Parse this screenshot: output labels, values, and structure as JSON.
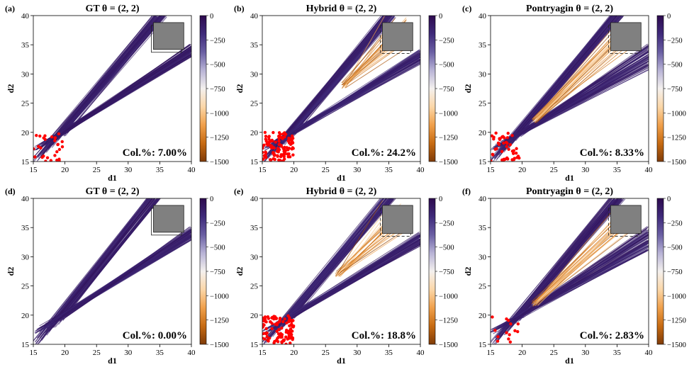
{
  "colors": {
    "colormap": [
      "#2d0a4e",
      "#3f2a7a",
      "#6a5fa3",
      "#b8b3d6",
      "#f4f1ee",
      "#fbd7a8",
      "#f0a04b",
      "#c76b12",
      "#7f3b08"
    ],
    "collision_dot": "#ff0000",
    "obstacle_fill": "#808080"
  },
  "chart_data": [
    {
      "type": "line",
      "panel_label": "(a)",
      "title": "GT θ = (2, 2)",
      "xlabel": "d1",
      "ylabel": "d2",
      "xlim": [
        15,
        40
      ],
      "ylim": [
        15,
        40
      ],
      "xticks": [
        "15",
        "20",
        "25",
        "30",
        "35",
        "40"
      ],
      "yticks": [
        "15",
        "20",
        "25",
        "30",
        "35",
        "40"
      ],
      "colorbar": {
        "ticks": [
          "0",
          "−250",
          "−500",
          "−750",
          "−1000",
          "−1250",
          "−1500"
        ],
        "range": [
          -1500,
          0
        ]
      },
      "obstacle": {
        "x": [
          34,
          38.8
        ],
        "y": [
          34.2,
          38.8
        ]
      },
      "start_region": {
        "x": [
          15,
          20
        ],
        "y": [
          15,
          20
        ]
      },
      "trajectory_bands": [
        {
          "start": [
            15,
            15
          ],
          "end": [
            34,
            40
          ],
          "start_end": [
            20,
            20
          ],
          "end_end": [
            36,
            40
          ],
          "value": -50
        },
        {
          "start": [
            15,
            17
          ],
          "end": [
            40,
            33
          ],
          "start_end": [
            20,
            20
          ],
          "end_end": [
            40,
            35
          ],
          "value": -50
        }
      ],
      "collision_points": 30,
      "annotation": "Col.%: 7.00%"
    },
    {
      "type": "line",
      "panel_label": "(b)",
      "title": "Hybrid θ = (2, 2)",
      "xlabel": "d1",
      "ylabel": "d2",
      "xlim": [
        15,
        40
      ],
      "ylim": [
        15,
        40
      ],
      "xticks": [
        "15",
        "20",
        "25",
        "30",
        "35",
        "40"
      ],
      "yticks": [
        "15",
        "20",
        "25",
        "30",
        "35",
        "40"
      ],
      "colorbar": {
        "ticks": [
          "0",
          "−250",
          "−500",
          "−750",
          "−1000",
          "−1250",
          "−1500"
        ],
        "range": [
          -1500,
          0
        ]
      },
      "obstacle": {
        "x": [
          34,
          38.8
        ],
        "y": [
          34,
          38.8
        ]
      },
      "start_region": {
        "x": [
          15,
          20
        ],
        "y": [
          15,
          20
        ]
      },
      "trajectory_bands": [
        {
          "start": [
            15,
            15
          ],
          "end": [
            34,
            40
          ],
          "start_end": [
            20,
            20
          ],
          "end_end": [
            36,
            40
          ],
          "value": -80
        },
        {
          "start": [
            15,
            17
          ],
          "end": [
            40,
            32
          ],
          "start_end": [
            20,
            20
          ],
          "end_end": [
            40,
            34
          ],
          "value": -80
        }
      ],
      "fan": {
        "origin": [
          28,
          28
        ],
        "end_x": [
          34,
          38
        ],
        "end_y": [
          34,
          40
        ],
        "value": -1200
      },
      "collision_points": 110,
      "annotation": "Col.%: 24.2%"
    },
    {
      "type": "line",
      "panel_label": "(c)",
      "title": "Pontryagin θ = (2, 2)",
      "xlabel": "d1",
      "ylabel": "d2",
      "xlim": [
        15,
        40
      ],
      "ylim": [
        15,
        40
      ],
      "xticks": [
        "15",
        "20",
        "25",
        "30",
        "35",
        "40"
      ],
      "yticks": [
        "15",
        "20",
        "25",
        "30",
        "35",
        "40"
      ],
      "colorbar": {
        "ticks": [
          "0",
          "−250",
          "−500",
          "−750",
          "−1000",
          "−1250",
          "−1500"
        ],
        "range": [
          -1500,
          0
        ]
      },
      "obstacle": {
        "x": [
          34,
          38.8
        ],
        "y": [
          34,
          38.8
        ]
      },
      "start_region": {
        "x": [
          15,
          20
        ],
        "y": [
          15,
          20
        ]
      },
      "trajectory_bands": [
        {
          "start": [
            15,
            15
          ],
          "end": [
            34,
            40
          ],
          "start_end": [
            20,
            20
          ],
          "end_end": [
            36,
            40
          ],
          "value": -60
        },
        {
          "start": [
            15,
            17
          ],
          "end": [
            40,
            31
          ],
          "start_end": [
            20,
            20
          ],
          "end_end": [
            40,
            35
          ],
          "value": -60
        }
      ],
      "fan": {
        "origin": [
          22,
          22
        ],
        "end_x": [
          34,
          38
        ],
        "end_y": [
          34,
          39
        ],
        "value": -1200
      },
      "collision_points": 45,
      "annotation": "Col.%: 8.33%"
    },
    {
      "type": "line",
      "panel_label": "(d)",
      "title": "GT θ = (2, 2)",
      "xlabel": "d1",
      "ylabel": "d2",
      "xlim": [
        15,
        40
      ],
      "ylim": [
        15,
        40
      ],
      "xticks": [
        "15",
        "20",
        "25",
        "30",
        "35",
        "40"
      ],
      "yticks": [
        "15",
        "20",
        "25",
        "30",
        "35",
        "40"
      ],
      "colorbar": {
        "ticks": [
          "0",
          "−250",
          "−500",
          "−750",
          "−1000",
          "−1250",
          "−1500"
        ],
        "range": [
          -1500,
          0
        ]
      },
      "obstacle": {
        "x": [
          34,
          38.8
        ],
        "y": [
          34.2,
          38.8
        ]
      },
      "start_region": {
        "x": [
          15,
          20
        ],
        "y": [
          15,
          20
        ]
      },
      "trajectory_bands": [
        {
          "start": [
            15,
            15
          ],
          "end": [
            33,
            40
          ],
          "start_end": [
            20,
            20
          ],
          "end_end": [
            35,
            40
          ],
          "value": -50
        },
        {
          "start": [
            15,
            17
          ],
          "end": [
            40,
            33
          ],
          "start_end": [
            20,
            20
          ],
          "end_end": [
            40,
            35
          ],
          "value": -50
        }
      ],
      "collision_points": 0,
      "annotation": "Col.%: 0.00%"
    },
    {
      "type": "line",
      "panel_label": "(e)",
      "title": "Hybrid θ = (2, 2)",
      "xlabel": "d1",
      "ylabel": "d2",
      "xlim": [
        15,
        40
      ],
      "ylim": [
        15,
        40
      ],
      "xticks": [
        "15",
        "20",
        "25",
        "30",
        "35",
        "40"
      ],
      "yticks": [
        "15",
        "20",
        "25",
        "30",
        "35",
        "40"
      ],
      "colorbar": {
        "ticks": [
          "0",
          "−250",
          "−500",
          "−750",
          "−1000",
          "−1250",
          "−1500"
        ],
        "range": [
          -1500,
          0
        ]
      },
      "obstacle": {
        "x": [
          34,
          38.8
        ],
        "y": [
          34,
          38.8
        ]
      },
      "start_region": {
        "x": [
          15,
          20
        ],
        "y": [
          15,
          20
        ]
      },
      "trajectory_bands": [
        {
          "start": [
            15,
            15
          ],
          "end": [
            34,
            40
          ],
          "start_end": [
            20,
            20
          ],
          "end_end": [
            36,
            40
          ],
          "value": -80
        },
        {
          "start": [
            15,
            17
          ],
          "end": [
            40,
            32
          ],
          "start_end": [
            20,
            20
          ],
          "end_end": [
            40,
            34
          ],
          "value": -80
        }
      ],
      "fan": {
        "origin": [
          27,
          27
        ],
        "end_x": [
          34,
          38
        ],
        "end_y": [
          34,
          40
        ],
        "value": -1200
      },
      "collision_points": 100,
      "annotation": "Col.%: 18.8%"
    },
    {
      "type": "line",
      "panel_label": "(f)",
      "title": "Pontryagin θ = (2, 2)",
      "xlabel": "d1",
      "ylabel": "d2",
      "xlim": [
        15,
        40
      ],
      "ylim": [
        15,
        40
      ],
      "xticks": [
        "15",
        "20",
        "25",
        "30",
        "35",
        "40"
      ],
      "yticks": [
        "15",
        "20",
        "25",
        "30",
        "35",
        "40"
      ],
      "colorbar": {
        "ticks": [
          "0",
          "−250",
          "−500",
          "−750",
          "−1000",
          "−1250",
          "−1500"
        ],
        "range": [
          -1500,
          0
        ]
      },
      "obstacle": {
        "x": [
          34,
          38.8
        ],
        "y": [
          34,
          38.8
        ]
      },
      "start_region": {
        "x": [
          15,
          20
        ],
        "y": [
          15,
          20
        ]
      },
      "trajectory_bands": [
        {
          "start": [
            15,
            15
          ],
          "end": [
            34,
            40
          ],
          "start_end": [
            20,
            20
          ],
          "end_end": [
            36,
            40
          ],
          "value": -60
        },
        {
          "start": [
            15,
            17
          ],
          "end": [
            40,
            31
          ],
          "start_end": [
            20,
            20
          ],
          "end_end": [
            40,
            35
          ],
          "value": -60
        }
      ],
      "fan": {
        "origin": [
          22,
          22
        ],
        "end_x": [
          34,
          38
        ],
        "end_y": [
          34,
          39
        ],
        "value": -1200
      },
      "collision_points": 14,
      "annotation": "Col.%: 2.83%"
    }
  ]
}
